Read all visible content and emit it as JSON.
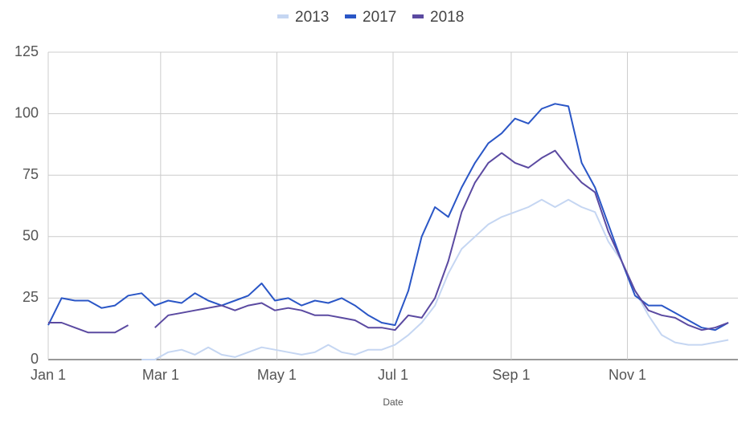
{
  "chart_data": {
    "type": "line",
    "x_label": "Date",
    "x": [
      0,
      7,
      14,
      21,
      28,
      35,
      42,
      49,
      56,
      63,
      70,
      77,
      84,
      91,
      98,
      105,
      112,
      119,
      126,
      133,
      140,
      147,
      154,
      161,
      168,
      175,
      182,
      189,
      196,
      203,
      210,
      217,
      224,
      231,
      238,
      245,
      252,
      259,
      266,
      273,
      280,
      287,
      294,
      301,
      308,
      315,
      322,
      329,
      336,
      343,
      350,
      357
    ],
    "xlim": [
      0,
      362
    ],
    "xticks": [
      {
        "value": 0,
        "label": "Jan 1"
      },
      {
        "value": 59,
        "label": "Mar 1"
      },
      {
        "value": 120,
        "label": "May 1"
      },
      {
        "value": 181,
        "label": "Jul 1"
      },
      {
        "value": 243,
        "label": "Sep 1"
      },
      {
        "value": 304,
        "label": "Nov 1"
      }
    ],
    "ylim": [
      0,
      125
    ],
    "yticks": [
      0,
      25,
      50,
      75,
      100,
      125
    ],
    "grid": true,
    "legend": "top",
    "series": [
      {
        "name": "2013",
        "color": "#c5d6f2",
        "values": [
          null,
          null,
          null,
          null,
          null,
          null,
          null,
          0,
          0,
          3,
          4,
          2,
          5,
          2,
          1,
          3,
          5,
          4,
          3,
          2,
          3,
          6,
          3,
          2,
          4,
          4,
          6,
          10,
          15,
          22,
          35,
          45,
          50,
          55,
          58,
          60,
          62,
          65,
          62,
          65,
          62,
          60,
          48,
          40,
          28,
          18,
          10,
          7,
          6,
          6,
          7,
          8
        ]
      },
      {
        "name": "2017",
        "color": "#2a56c6",
        "values": [
          14,
          25,
          24,
          24,
          21,
          22,
          26,
          27,
          22,
          24,
          23,
          27,
          24,
          22,
          24,
          26,
          31,
          24,
          25,
          22,
          24,
          23,
          25,
          22,
          18,
          15,
          14,
          28,
          50,
          62,
          58,
          70,
          80,
          88,
          92,
          98,
          96,
          102,
          104,
          103,
          80,
          70,
          55,
          40,
          26,
          22,
          22,
          19,
          16,
          13,
          12,
          15
        ]
      },
      {
        "name": "2018",
        "color": "#5b4aa1",
        "values": [
          15,
          15,
          13,
          11,
          11,
          11,
          14,
          null,
          13,
          18,
          19,
          20,
          21,
          22,
          20,
          22,
          23,
          20,
          21,
          20,
          18,
          18,
          17,
          16,
          13,
          13,
          12,
          18,
          17,
          25,
          40,
          60,
          72,
          80,
          84,
          80,
          78,
          82,
          85,
          78,
          72,
          68,
          52,
          40,
          28,
          20,
          18,
          17,
          14,
          12,
          13,
          15
        ]
      }
    ]
  }
}
